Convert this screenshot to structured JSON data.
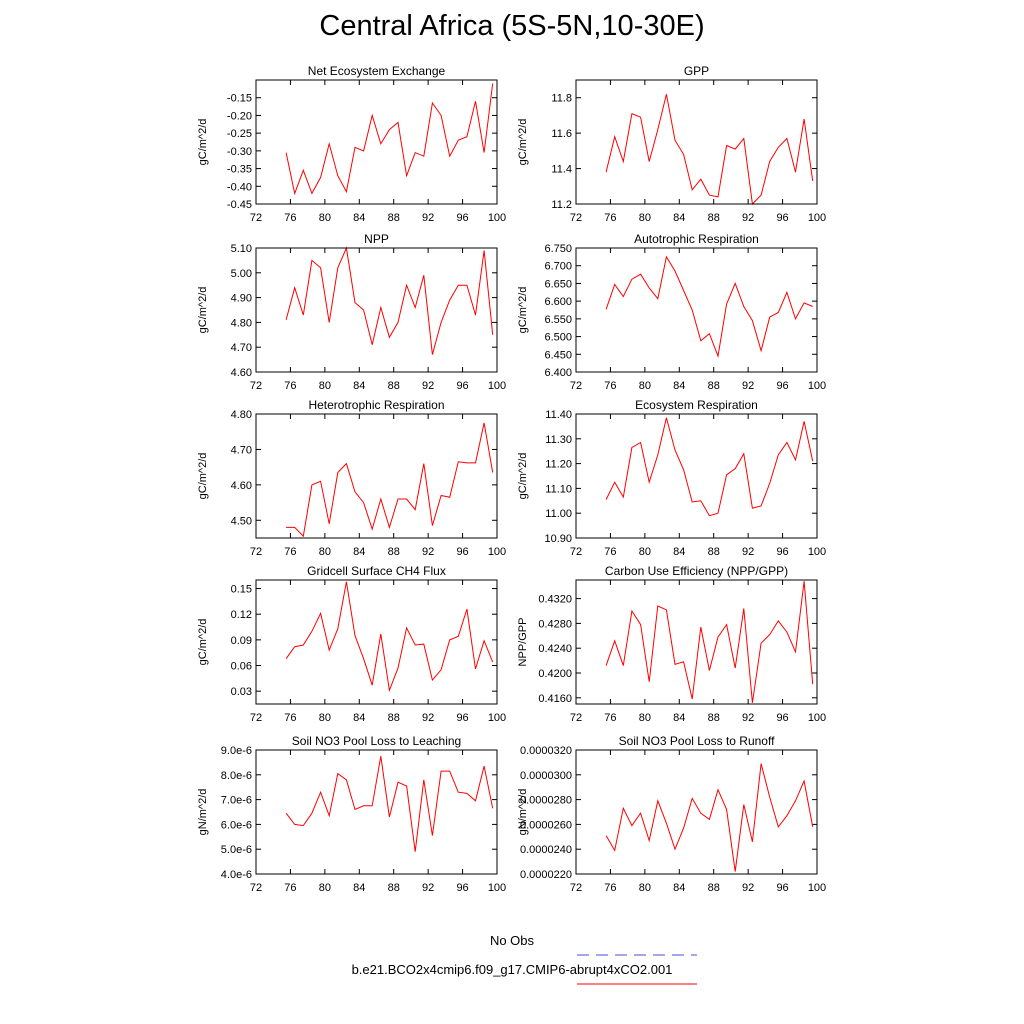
{
  "title": "Central Africa (5S-5N,10-30E)",
  "legend": {
    "entries": [
      {
        "label": "No Obs",
        "color": "#4b4bd6",
        "style": "dashed"
      },
      {
        "label": "b.e21.BCO2x4cmip6.f09_g17.CMIP6-abrupt4xCO2.001",
        "color": "#ff0000",
        "style": "solid"
      }
    ]
  },
  "chart_data": [
    {
      "type": "line",
      "title": "Net Ecosystem Exchange",
      "ylabel": "gC/m^2/d",
      "xlim": [
        72,
        100
      ],
      "xticks": [
        72,
        76,
        80,
        84,
        88,
        92,
        96,
        100
      ],
      "ylim": [
        -0.45,
        -0.1
      ],
      "yticks": [
        -0.45,
        -0.4,
        -0.35,
        -0.3,
        -0.25,
        -0.2,
        -0.15
      ],
      "yticklabels": [
        "-0.45",
        "-0.40",
        "-0.35",
        "-0.30",
        "-0.25",
        "-0.20",
        "-0.15"
      ],
      "x": [
        75.5,
        76.5,
        77.5,
        78.5,
        79.5,
        80.5,
        81.5,
        82.5,
        83.5,
        84.5,
        85.5,
        86.5,
        87.5,
        88.5,
        89.5,
        90.5,
        91.5,
        92.5,
        93.5,
        94.5,
        95.5,
        96.5,
        97.5,
        98.5,
        99.5
      ],
      "series": [
        {
          "color": "#ff0000",
          "values": [
            -0.305,
            -0.42,
            -0.355,
            -0.42,
            -0.375,
            -0.28,
            -0.37,
            -0.415,
            -0.29,
            -0.3,
            -0.2,
            -0.28,
            -0.24,
            -0.22,
            -0.37,
            -0.305,
            -0.315,
            -0.165,
            -0.2,
            -0.315,
            -0.27,
            -0.26,
            -0.16,
            -0.305,
            -0.11
          ]
        }
      ]
    },
    {
      "type": "line",
      "title": "GPP",
      "ylabel": "gC/m^2/d",
      "xlim": [
        72,
        100
      ],
      "xticks": [
        72,
        76,
        80,
        84,
        88,
        92,
        96,
        100
      ],
      "ylim": [
        11.2,
        11.9
      ],
      "yticks": [
        11.2,
        11.4,
        11.6,
        11.8
      ],
      "yticklabels": [
        "11.2",
        "11.4",
        "11.6",
        "11.8"
      ],
      "x": [
        75.5,
        76.5,
        77.5,
        78.5,
        79.5,
        80.5,
        81.5,
        82.5,
        83.5,
        84.5,
        85.5,
        86.5,
        87.5,
        88.5,
        89.5,
        90.5,
        91.5,
        92.5,
        93.5,
        94.5,
        95.5,
        96.5,
        97.5,
        98.5,
        99.5
      ],
      "series": [
        {
          "color": "#ff0000",
          "values": [
            11.38,
            11.58,
            11.44,
            11.71,
            11.69,
            11.44,
            11.62,
            11.82,
            11.56,
            11.48,
            11.28,
            11.34,
            11.25,
            11.24,
            11.53,
            11.51,
            11.57,
            11.2,
            11.25,
            11.44,
            11.52,
            11.57,
            11.38,
            11.68,
            11.33
          ]
        }
      ]
    },
    {
      "type": "line",
      "title": "NPP",
      "ylabel": "gC/m^2/d",
      "xlim": [
        72,
        100
      ],
      "xticks": [
        72,
        76,
        80,
        84,
        88,
        92,
        96,
        100
      ],
      "ylim": [
        4.6,
        5.1
      ],
      "yticks": [
        4.6,
        4.7,
        4.8,
        4.9,
        5.0,
        5.1
      ],
      "yticklabels": [
        "4.60",
        "4.70",
        "4.80",
        "4.90",
        "5.00",
        "5.10"
      ],
      "x": [
        75.5,
        76.5,
        77.5,
        78.5,
        79.5,
        80.5,
        81.5,
        82.5,
        83.5,
        84.5,
        85.5,
        86.5,
        87.5,
        88.5,
        89.5,
        90.5,
        91.5,
        92.5,
        93.5,
        94.5,
        95.5,
        96.5,
        97.5,
        98.5,
        99.5
      ],
      "series": [
        {
          "color": "#ff0000",
          "values": [
            4.81,
            4.94,
            4.83,
            5.05,
            5.02,
            4.8,
            5.02,
            5.1,
            4.88,
            4.85,
            4.71,
            4.86,
            4.74,
            4.8,
            4.95,
            4.86,
            4.99,
            4.67,
            4.8,
            4.89,
            4.95,
            4.95,
            4.83,
            5.09,
            4.75
          ]
        }
      ]
    },
    {
      "type": "line",
      "title": "Autotrophic Respiration",
      "ylabel": "gC/m^2/d",
      "xlim": [
        72,
        100
      ],
      "xticks": [
        72,
        76,
        80,
        84,
        88,
        92,
        96,
        100
      ],
      "ylim": [
        6.4,
        6.75
      ],
      "yticks": [
        6.4,
        6.45,
        6.5,
        6.55,
        6.6,
        6.65,
        6.7,
        6.75
      ],
      "yticklabels": [
        "6.400",
        "6.450",
        "6.500",
        "6.550",
        "6.600",
        "6.650",
        "6.700",
        "6.750"
      ],
      "x": [
        75.5,
        76.5,
        77.5,
        78.5,
        79.5,
        80.5,
        81.5,
        82.5,
        83.5,
        84.5,
        85.5,
        86.5,
        87.5,
        88.5,
        89.5,
        90.5,
        91.5,
        92.5,
        93.5,
        94.5,
        95.5,
        96.5,
        97.5,
        98.5,
        99.5
      ],
      "series": [
        {
          "color": "#ff0000",
          "values": [
            6.577,
            6.647,
            6.613,
            6.662,
            6.676,
            6.637,
            6.607,
            6.725,
            6.685,
            6.63,
            6.575,
            6.488,
            6.508,
            6.445,
            6.592,
            6.65,
            6.585,
            6.545,
            6.46,
            6.555,
            6.568,
            6.625,
            6.55,
            6.595,
            6.585
          ]
        }
      ]
    },
    {
      "type": "line",
      "title": "Heterotrophic Respiration",
      "ylabel": "gC/m^2/d",
      "xlim": [
        72,
        100
      ],
      "xticks": [
        72,
        76,
        80,
        84,
        88,
        92,
        96,
        100
      ],
      "ylim": [
        4.45,
        4.8
      ],
      "yticks": [
        4.5,
        4.6,
        4.7,
        4.8
      ],
      "yticklabels": [
        "4.50",
        "4.60",
        "4.70",
        "4.80"
      ],
      "x": [
        75.5,
        76.5,
        77.5,
        78.5,
        79.5,
        80.5,
        81.5,
        82.5,
        83.5,
        84.5,
        85.5,
        86.5,
        87.5,
        88.5,
        89.5,
        90.5,
        91.5,
        92.5,
        93.5,
        94.5,
        95.5,
        96.5,
        97.5,
        98.5,
        99.5
      ],
      "series": [
        {
          "color": "#ff0000",
          "values": [
            4.48,
            4.48,
            4.455,
            4.6,
            4.61,
            4.49,
            4.635,
            4.66,
            4.58,
            4.55,
            4.475,
            4.56,
            4.48,
            4.56,
            4.56,
            4.53,
            4.66,
            4.485,
            4.57,
            4.565,
            4.665,
            4.662,
            4.662,
            4.775,
            4.635
          ]
        }
      ]
    },
    {
      "type": "line",
      "title": "Ecosystem Respiration",
      "ylabel": "gC/m^2/d",
      "xlim": [
        72,
        100
      ],
      "xticks": [
        72,
        76,
        80,
        84,
        88,
        92,
        96,
        100
      ],
      "ylim": [
        10.9,
        11.4
      ],
      "yticks": [
        10.9,
        11.0,
        11.1,
        11.2,
        11.3,
        11.4
      ],
      "yticklabels": [
        "10.90",
        "11.00",
        "11.10",
        "11.20",
        "11.30",
        "11.40"
      ],
      "x": [
        75.5,
        76.5,
        77.5,
        78.5,
        79.5,
        80.5,
        81.5,
        82.5,
        83.5,
        84.5,
        85.5,
        86.5,
        87.5,
        88.5,
        89.5,
        90.5,
        91.5,
        92.5,
        93.5,
        94.5,
        95.5,
        96.5,
        97.5,
        98.5,
        99.5
      ],
      "series": [
        {
          "color": "#ff0000",
          "values": [
            11.055,
            11.125,
            11.065,
            11.265,
            11.285,
            11.125,
            11.235,
            11.385,
            11.255,
            11.175,
            11.045,
            11.05,
            10.99,
            11.0,
            11.155,
            11.18,
            11.24,
            11.02,
            11.03,
            11.12,
            11.235,
            11.285,
            11.215,
            11.37,
            11.21
          ]
        }
      ]
    },
    {
      "type": "line",
      "title": "Gridcell Surface CH4 Flux",
      "ylabel": "gC/m^2/d",
      "xlim": [
        72,
        100
      ],
      "xticks": [
        72,
        76,
        80,
        84,
        88,
        92,
        96,
        100
      ],
      "ylim": [
        0.015,
        0.16
      ],
      "yticks": [
        0.03,
        0.06,
        0.09,
        0.12,
        0.15
      ],
      "yticklabels": [
        "0.03",
        "0.06",
        "0.09",
        "0.12",
        "0.15"
      ],
      "x": [
        75.5,
        76.5,
        77.5,
        78.5,
        79.5,
        80.5,
        81.5,
        82.5,
        83.5,
        84.5,
        85.5,
        86.5,
        87.5,
        88.5,
        89.5,
        90.5,
        91.5,
        92.5,
        93.5,
        94.5,
        95.5,
        96.5,
        97.5,
        98.5,
        99.5
      ],
      "series": [
        {
          "color": "#ff0000",
          "values": [
            0.068,
            0.082,
            0.084,
            0.1,
            0.121,
            0.078,
            0.103,
            0.158,
            0.095,
            0.068,
            0.037,
            0.097,
            0.031,
            0.057,
            0.104,
            0.084,
            0.085,
            0.043,
            0.055,
            0.09,
            0.094,
            0.126,
            0.056,
            0.089,
            0.064
          ]
        }
      ]
    },
    {
      "type": "line",
      "title": "Carbon Use Efficiency (NPP/GPP)",
      "ylabel": "NPP/GPP",
      "xlim": [
        72,
        100
      ],
      "xticks": [
        72,
        76,
        80,
        84,
        88,
        92,
        96,
        100
      ],
      "ylim": [
        0.415,
        0.435
      ],
      "yticks": [
        0.416,
        0.42,
        0.424,
        0.428,
        0.432
      ],
      "yticklabels": [
        "0.4160",
        "0.4200",
        "0.4240",
        "0.4280",
        "0.4320"
      ],
      "x": [
        75.5,
        76.5,
        77.5,
        78.5,
        79.5,
        80.5,
        81.5,
        82.5,
        83.5,
        84.5,
        85.5,
        86.5,
        87.5,
        88.5,
        89.5,
        90.5,
        91.5,
        92.5,
        93.5,
        94.5,
        95.5,
        96.5,
        97.5,
        98.5,
        99.5
      ],
      "series": [
        {
          "color": "#ff0000",
          "values": [
            0.4212,
            0.4252,
            0.4212,
            0.43,
            0.4278,
            0.4186,
            0.4308,
            0.4302,
            0.4214,
            0.4218,
            0.4158,
            0.4274,
            0.4204,
            0.4258,
            0.4278,
            0.4208,
            0.4304,
            0.4152,
            0.4248,
            0.4262,
            0.4284,
            0.4266,
            0.4234,
            0.4348,
            0.4182
          ]
        }
      ]
    },
    {
      "type": "line",
      "title": "Soil NO3 Pool Loss to Leaching",
      "ylabel": "gN/m^2/d",
      "xlim": [
        72,
        100
      ],
      "xticks": [
        72,
        76,
        80,
        84,
        88,
        92,
        96,
        100
      ],
      "ylim": [
        4e-06,
        9e-06
      ],
      "yticks": [
        4e-06,
        5e-06,
        6e-06,
        7e-06,
        8e-06,
        9e-06
      ],
      "yticklabels": [
        "4.0e-6",
        "5.0e-6",
        "6.0e-6",
        "7.0e-6",
        "8.0e-6",
        "9.0e-6"
      ],
      "x": [
        75.5,
        76.5,
        77.5,
        78.5,
        79.5,
        80.5,
        81.5,
        82.5,
        83.5,
        84.5,
        85.5,
        86.5,
        87.5,
        88.5,
        89.5,
        90.5,
        91.5,
        92.5,
        93.5,
        94.5,
        95.5,
        96.5,
        97.5,
        98.5,
        99.5
      ],
      "series": [
        {
          "color": "#ff0000",
          "values": [
            6.45e-06,
            6e-06,
            5.95e-06,
            6.45e-06,
            7.3e-06,
            6.35e-06,
            8.05e-06,
            7.8e-06,
            6.6e-06,
            6.75e-06,
            6.75e-06,
            8.75e-06,
            6.3e-06,
            7.7e-06,
            7.55e-06,
            4.9e-06,
            7.8e-06,
            5.55e-06,
            8.15e-06,
            8.15e-06,
            7.3e-06,
            7.25e-06,
            6.95e-06,
            8.35e-06,
            6.65e-06
          ]
        }
      ]
    },
    {
      "type": "line",
      "title": "Soil NO3 Pool Loss to Runoff",
      "ylabel": "gN/m^2/d",
      "xlim": [
        72,
        100
      ],
      "xticks": [
        72,
        76,
        80,
        84,
        88,
        92,
        96,
        100
      ],
      "ylim": [
        2.2e-05,
        3.2e-05
      ],
      "yticks": [
        2.2e-05,
        2.4e-05,
        2.6e-05,
        2.8e-05,
        3e-05,
        3.2e-05
      ],
      "yticklabels": [
        "0.0000220",
        "0.0000240",
        "0.0000260",
        "0.0000280",
        "0.0000300",
        "0.0000320"
      ],
      "x": [
        75.5,
        76.5,
        77.5,
        78.5,
        79.5,
        80.5,
        81.5,
        82.5,
        83.5,
        84.5,
        85.5,
        86.5,
        87.5,
        88.5,
        89.5,
        90.5,
        91.5,
        92.5,
        93.5,
        94.5,
        95.5,
        96.5,
        97.5,
        98.5,
        99.5
      ],
      "series": [
        {
          "color": "#ff0000",
          "values": [
            2.51e-05,
            2.39e-05,
            2.73e-05,
            2.59e-05,
            2.69e-05,
            2.47e-05,
            2.79e-05,
            2.61e-05,
            2.4e-05,
            2.57e-05,
            2.81e-05,
            2.69e-05,
            2.64e-05,
            2.88e-05,
            2.72e-05,
            2.22e-05,
            2.76e-05,
            2.46e-05,
            3.09e-05,
            2.82e-05,
            2.58e-05,
            2.67e-05,
            2.79e-05,
            2.95e-05,
            2.58e-05
          ]
        }
      ]
    }
  ]
}
